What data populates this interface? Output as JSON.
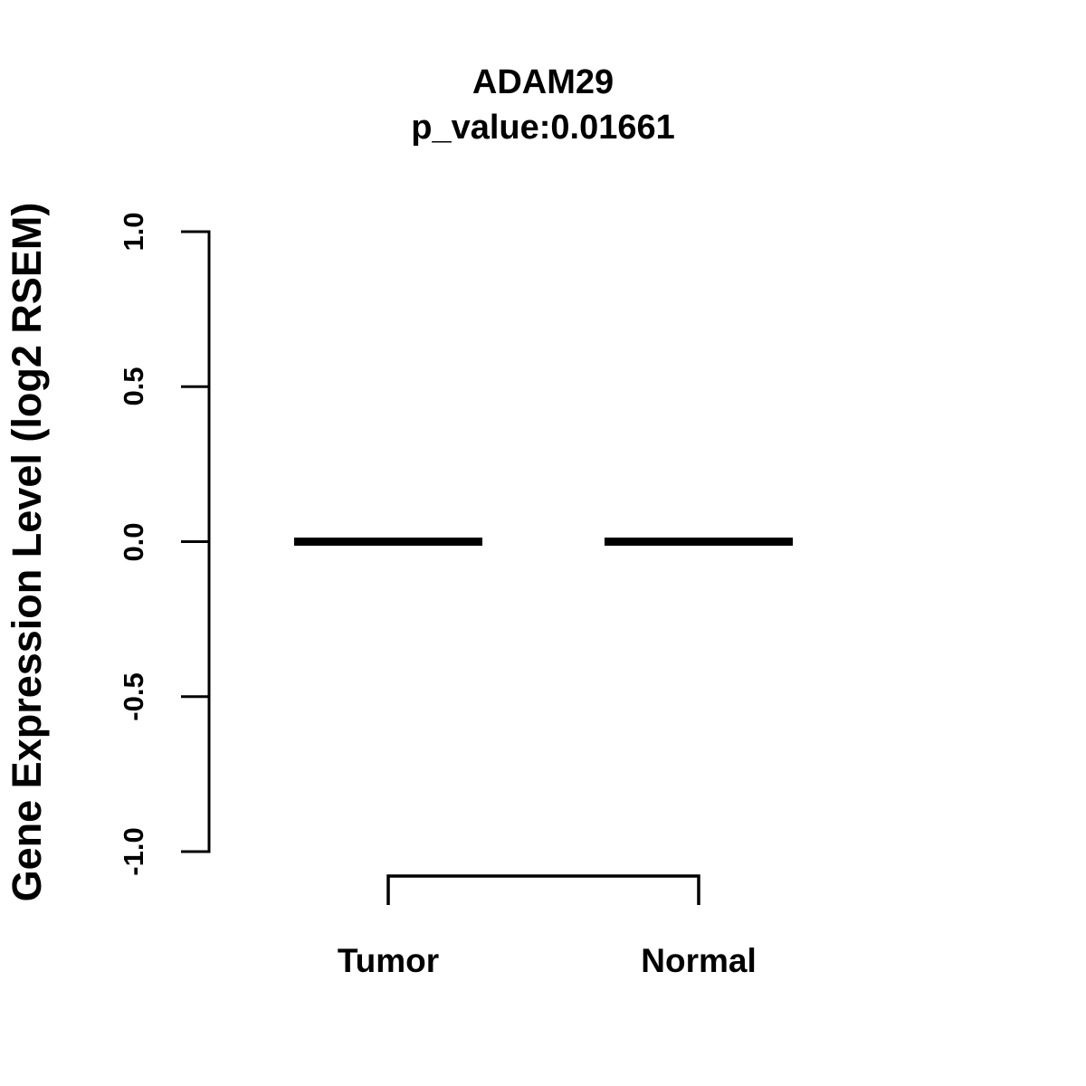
{
  "chart": {
    "title": "ADAM29",
    "subtitle": "p_value:0.01661",
    "ylabel": "Gene Expression Level (log2 RSEM)"
  },
  "chart_data": {
    "type": "boxplot",
    "title": "ADAM29",
    "subtitle": "p_value:0.01661",
    "xlabel": "",
    "ylabel": "Gene Expression Level (log2 RSEM)",
    "p_value": 0.01661,
    "groups": [
      "Tumor",
      "Normal"
    ],
    "series": [
      {
        "name": "Tumor",
        "median": 0.0,
        "q1": 0.0,
        "q3": 0.0,
        "whisker_low": 0.0,
        "whisker_high": 0.0
      },
      {
        "name": "Normal",
        "median": 0.0,
        "q1": 0.0,
        "q3": 0.0,
        "whisker_low": 0.0,
        "whisker_high": 0.0
      }
    ],
    "ylim": [
      -1.0,
      1.0
    ],
    "ytick_values": [
      1.0,
      0.5,
      0.0,
      -0.5,
      -1.0
    ],
    "ytick_labels": [
      "1.0",
      "0.5",
      "0.0",
      "-0.5",
      "-1.0"
    ],
    "grid": false,
    "legend": "none",
    "comparison_bracket": {
      "from": "Tumor",
      "to": "Normal"
    },
    "colors": {
      "foreground": "#000000",
      "background": "#ffffff"
    }
  }
}
